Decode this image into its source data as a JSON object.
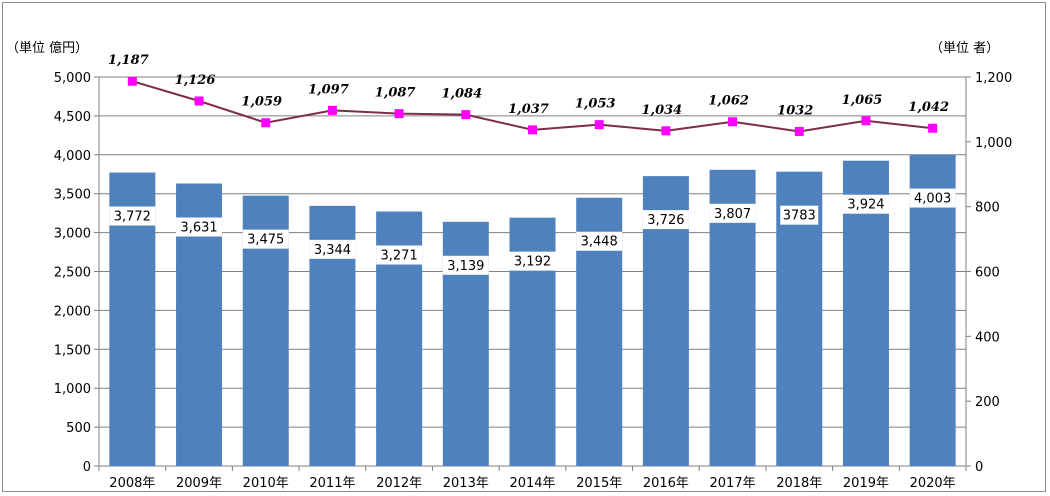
{
  "chart_data": {
    "type": "bar+line",
    "categories": [
      "2008年",
      "2009年",
      "2010年",
      "2011年",
      "2012年",
      "2013年",
      "2014年",
      "2015年",
      "2016年",
      "2017年",
      "2018年",
      "2019年",
      "2020年"
    ],
    "series": [
      {
        "type": "bar",
        "axis": "left",
        "values": [
          3772,
          3631,
          3475,
          3344,
          3271,
          3139,
          3192,
          3448,
          3726,
          3807,
          3783,
          3924,
          4003
        ],
        "labels": [
          "3,772",
          "3,631",
          "3,475",
          "3,344",
          "3,271",
          "3,139",
          "3,192",
          "3,448",
          "3,726",
          "3,807",
          "3783",
          "3,924",
          "4,003"
        ],
        "color": "#4f81bd"
      },
      {
        "type": "line",
        "axis": "right",
        "values": [
          1187,
          1126,
          1059,
          1097,
          1087,
          1084,
          1037,
          1053,
          1034,
          1062,
          1032,
          1065,
          1042
        ],
        "labels": [
          "1,187",
          "1,126",
          "1,059",
          "1,097",
          "1,087",
          "1,084",
          "1,037",
          "1,053",
          "1,034",
          "1,062",
          "1032",
          "1,065",
          "1,042"
        ],
        "line_color": "#7b2c4f",
        "marker_color": "#ff00ff"
      }
    ],
    "left_axis": {
      "unit_label": "（単位  億円）",
      "ylim": [
        0,
        5000
      ],
      "ticks": [
        "0",
        "500",
        "1,000",
        "1,500",
        "2,000",
        "2,500",
        "3,000",
        "3,500",
        "4,000",
        "4,500",
        "5,000"
      ]
    },
    "right_axis": {
      "unit_label": "（単位  者）",
      "ylim": [
        0,
        1200
      ],
      "ticks": [
        "0",
        "200",
        "400",
        "600",
        "800",
        "1,000",
        "1,200"
      ]
    },
    "grid": true,
    "legend": "none"
  }
}
